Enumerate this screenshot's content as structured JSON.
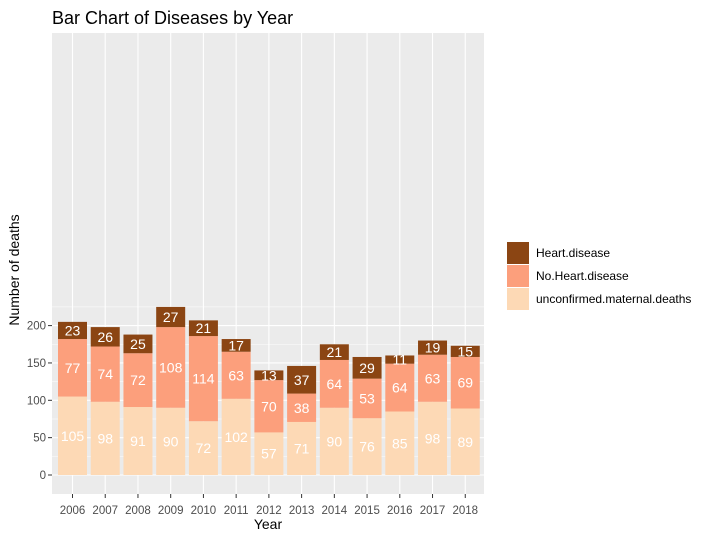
{
  "chart_data": {
    "type": "bar",
    "stacked": true,
    "title": "Bar Chart of Diseases by Year",
    "xlabel": "Year",
    "ylabel": "Number of deaths",
    "categories": [
      "2006",
      "2007",
      "2008",
      "2009",
      "2010",
      "2011",
      "2012",
      "2013",
      "2014",
      "2015",
      "2016",
      "2017",
      "2018"
    ],
    "ylim": [
      0,
      230
    ],
    "yticks": [
      0,
      50,
      100,
      150,
      200
    ],
    "grid": true,
    "legend_position": "right",
    "series": [
      {
        "name": "unconfirmed.maternal.deaths",
        "color": "#fdd9b5",
        "values": [
          105,
          98,
          91,
          90,
          72,
          102,
          57,
          71,
          90,
          76,
          85,
          98,
          89
        ]
      },
      {
        "name": "No.Heart.disease",
        "color": "#fc9f7c",
        "values": [
          77,
          74,
          72,
          108,
          114,
          63,
          70,
          38,
          64,
          53,
          64,
          63,
          69
        ]
      },
      {
        "name": "Heart.disease",
        "color": "#8b4513",
        "values": [
          23,
          26,
          25,
          27,
          21,
          17,
          13,
          37,
          21,
          29,
          11,
          19,
          15
        ]
      }
    ],
    "legend_order": [
      "Heart.disease",
      "No.Heart.disease",
      "unconfirmed.maternal.deaths"
    ]
  }
}
